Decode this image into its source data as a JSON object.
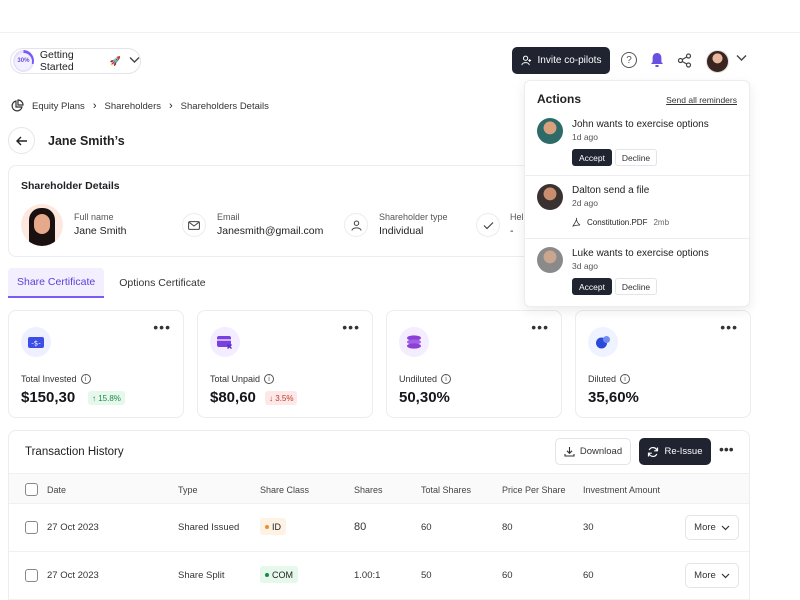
{
  "header": {
    "getting_started": {
      "progress": "30%",
      "label": "Getting Started",
      "rocket": "🚀"
    },
    "invite_button": "Invite co-pilots",
    "icons": [
      "help-icon",
      "bell-icon",
      "share-icon",
      "chevron-down-icon"
    ],
    "accent_color": "#7a5af8",
    "bell_color": "#6b4fe0"
  },
  "breadcrumb": {
    "items": [
      "Equity Plans",
      "Shareholders",
      "Shareholders Details"
    ]
  },
  "page": {
    "title": "Jane Smith’s"
  },
  "shareholder_details": {
    "title": "Shareholder Details",
    "full_name": {
      "label": "Full name",
      "value": "Jane Smith"
    },
    "email": {
      "label": "Email",
      "value": "Janesmith@gmail.com"
    },
    "type": {
      "label": "Shareholder type",
      "value": "Individual"
    },
    "held": {
      "label": "Hel",
      "value": "-"
    }
  },
  "tabs": [
    {
      "label": "Share Certificate",
      "active": true
    },
    {
      "label": "Options Certificate",
      "active": false
    }
  ],
  "stats": [
    {
      "label": "Total Invested",
      "value": "$150,30",
      "badge": "15.8%",
      "trend": "up",
      "icon": "dollar-card-icon",
      "icon_bg": "#eef0ff",
      "icon_color": "#3d4ee8"
    },
    {
      "label": "Total Unpaid",
      "value": "$80,60",
      "badge": "3.5%",
      "trend": "down",
      "icon": "card-x-icon",
      "icon_bg": "#f3edff",
      "icon_color": "#7a3fe0"
    },
    {
      "label": "Undiluted",
      "value": "50,30%",
      "icon": "stack-icon",
      "icon_bg": "#f3edff",
      "icon_color": "#8a3fd6"
    },
    {
      "label": "Diluted",
      "value": "35,60%",
      "icon": "bubbles-icon",
      "icon_bg": "#eef3ff",
      "icon_color": "#2c4ad8"
    }
  ],
  "transactions": {
    "title": "Transaction History",
    "download_label": "Download",
    "reissue_label": "Re-Issue",
    "columns": [
      "Date",
      "Type",
      "Share Class",
      "Shares",
      "Total Shares",
      "Price Per Share",
      "Investment Amount"
    ],
    "rows": [
      {
        "date": "27 Oct 2023",
        "type": "Shared Issued",
        "share_class": "ID",
        "class_color": "#e8912e",
        "shares": "80",
        "total_shares": "60",
        "price": "80",
        "amount": "30",
        "more": "More"
      },
      {
        "date": "27 Oct 2023",
        "type": "Share Split",
        "share_class": "COM",
        "class_color": "#1a8a48",
        "shares": "1.00:1",
        "total_shares": "50",
        "price": "60",
        "amount": "60",
        "more": "More"
      }
    ]
  },
  "actions_panel": {
    "title": "Actions",
    "send_all": "Send all reminders",
    "notifications": [
      {
        "text": "John wants to exercise options",
        "time": "1d ago",
        "accept": "Accept",
        "decline": "Decline"
      },
      {
        "text": "Dalton send a file",
        "time": "2d ago",
        "file": "Constitution.PDF",
        "size": "2mb"
      },
      {
        "text": "Luke wants to exercise options",
        "time": "3d ago",
        "accept": "Accept",
        "decline": "Decline"
      }
    ]
  }
}
